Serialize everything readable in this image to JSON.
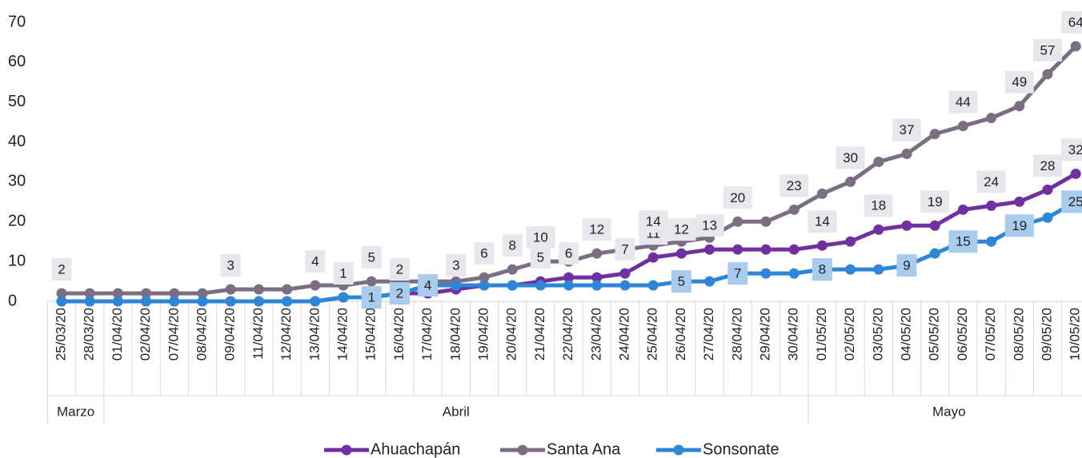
{
  "chart_data": {
    "type": "line",
    "categories": [
      "25/03/20",
      "28/03/20",
      "01/04/20",
      "02/04/20",
      "07/04/20",
      "08/04/20",
      "09/04/20",
      "11/04/20",
      "12/04/20",
      "13/04/20",
      "14/04/20",
      "15/04/20",
      "16/04/20",
      "17/04/20",
      "18/04/20",
      "19/04/20",
      "20/04/20",
      "21/04/20",
      "22/04/20",
      "23/04/20",
      "24/04/20",
      "25/04/20",
      "26/04/20",
      "27/04/20",
      "28/04/20",
      "29/04/20",
      "30/04/20",
      "01/05/20",
      "02/05/20",
      "03/05/20",
      "04/05/20",
      "05/05/20",
      "06/05/20",
      "07/05/20",
      "08/05/20",
      "09/05/20",
      "10/05/20"
    ],
    "groups": [
      {
        "label": "Marzo",
        "count": 2
      },
      {
        "label": "Abril",
        "count": 25
      },
      {
        "label": "Mayo",
        "count": 10
      }
    ],
    "series": [
      {
        "name": "Ahuachapán",
        "color": "#7030a0",
        "values": [
          0,
          0,
          0,
          0,
          0,
          0,
          0,
          0,
          0,
          0,
          1,
          1,
          2,
          2,
          3,
          4,
          4,
          5,
          6,
          6,
          7,
          11,
          12,
          13,
          13,
          13,
          13,
          14,
          15,
          18,
          19,
          19,
          23,
          24,
          25,
          28,
          32
        ],
        "value_labels": [
          null,
          null,
          null,
          null,
          null,
          null,
          null,
          null,
          null,
          null,
          "1",
          null,
          "2",
          null,
          "3",
          null,
          null,
          "5",
          "6",
          null,
          "7",
          "11",
          "12",
          "13",
          null,
          null,
          null,
          "14",
          null,
          "18",
          null,
          "19",
          null,
          "24",
          null,
          "28",
          "32"
        ]
      },
      {
        "name": "Santa Ana",
        "color": "#7b6e82",
        "values": [
          2,
          2,
          2,
          2,
          2,
          2,
          3,
          3,
          3,
          4,
          4,
          5,
          5,
          5,
          5,
          6,
          8,
          10,
          10,
          12,
          13,
          14,
          15,
          16,
          20,
          20,
          23,
          27,
          30,
          35,
          37,
          42,
          44,
          46,
          49,
          57,
          64
        ],
        "value_labels": [
          "2",
          null,
          null,
          null,
          null,
          null,
          "3",
          null,
          null,
          "4",
          null,
          "5",
          null,
          null,
          null,
          "6",
          "8",
          "10",
          null,
          "12",
          null,
          "14",
          null,
          null,
          "20",
          null,
          "23",
          null,
          "30",
          null,
          "37",
          null,
          "44",
          null,
          "49",
          "57",
          "64"
        ]
      },
      {
        "name": "Sonsonate",
        "color": "#2e86d8",
        "values": [
          0,
          0,
          0,
          0,
          0,
          0,
          0,
          0,
          0,
          0,
          1,
          1,
          2,
          4,
          4,
          4,
          4,
          4,
          4,
          4,
          4,
          4,
          5,
          5,
          7,
          7,
          7,
          8,
          8,
          8,
          9,
          12,
          15,
          15,
          19,
          21,
          25
        ],
        "value_labels": [
          null,
          null,
          null,
          null,
          null,
          null,
          null,
          null,
          null,
          null,
          null,
          "1",
          "2",
          "4",
          null,
          null,
          null,
          null,
          null,
          null,
          null,
          null,
          "5",
          null,
          "7",
          null,
          null,
          "8",
          null,
          null,
          "9",
          null,
          "15",
          null,
          "19",
          null,
          "25"
        ]
      }
    ],
    "ylim": [
      0,
      70
    ],
    "yticks": [
      0,
      10,
      20,
      30,
      40,
      50,
      60,
      70
    ],
    "legend": "bottom"
  }
}
